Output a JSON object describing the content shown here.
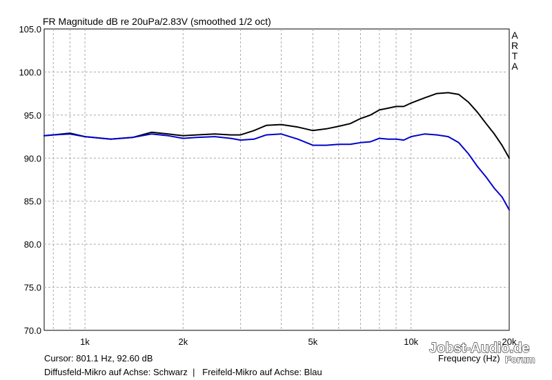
{
  "chart_data": {
    "type": "line",
    "title": "FR Magnitude dB re 20uPa/2.83V (smoothed 1/2 oct)",
    "xlabel": "Frequency (Hz)",
    "ylabel": "",
    "x_scale": "log",
    "xlim": [
      750,
      20000
    ],
    "ylim": [
      70,
      105
    ],
    "grid": true,
    "y_ticks": [
      70,
      75,
      80,
      85,
      90,
      95,
      100,
      105
    ],
    "y_tick_labels": [
      "70.0",
      "75.0",
      "80.0",
      "85.0",
      "90.0",
      "95.0",
      "100.0",
      "105.0"
    ],
    "x_ticks": [
      1000,
      2000,
      5000,
      10000,
      20000
    ],
    "x_tick_labels": [
      "1k",
      "2k",
      "5k",
      "10k",
      "20k"
    ],
    "x_minor_gridlines": [
      800,
      900,
      3000,
      4000,
      6000,
      7000,
      8000,
      9000
    ],
    "series": [
      {
        "color": "#000000",
        "x": [
          750,
          800,
          900,
          1000,
          1200,
          1400,
          1600,
          1800,
          2000,
          2200,
          2500,
          2800,
          3000,
          3300,
          3600,
          4000,
          4500,
          5000,
          5500,
          6000,
          6500,
          7000,
          7500,
          8000,
          8500,
          9000,
          9500,
          10000,
          11000,
          12000,
          13000,
          14000,
          15000,
          16000,
          17000,
          18000,
          19000,
          20000
        ],
        "y": [
          92.6,
          92.7,
          92.9,
          92.5,
          92.2,
          92.4,
          93.0,
          92.8,
          92.6,
          92.7,
          92.8,
          92.7,
          92.7,
          93.2,
          93.8,
          93.9,
          93.6,
          93.2,
          93.4,
          93.7,
          94.0,
          94.6,
          95.0,
          95.6,
          95.8,
          96.0,
          96.0,
          96.4,
          97.0,
          97.5,
          97.6,
          97.4,
          96.5,
          95.3,
          94.0,
          92.8,
          91.5,
          90.0
        ]
      },
      {
        "color": "#0000cc",
        "x": [
          750,
          800,
          900,
          1000,
          1200,
          1400,
          1600,
          1800,
          2000,
          2200,
          2500,
          2800,
          3000,
          3300,
          3600,
          4000,
          4500,
          5000,
          5500,
          6000,
          6500,
          7000,
          7500,
          8000,
          8500,
          9000,
          9500,
          10000,
          11000,
          12000,
          13000,
          14000,
          15000,
          16000,
          17000,
          18000,
          19000,
          20000
        ],
        "y": [
          92.6,
          92.7,
          92.8,
          92.5,
          92.2,
          92.4,
          92.8,
          92.6,
          92.3,
          92.4,
          92.5,
          92.3,
          92.1,
          92.2,
          92.7,
          92.8,
          92.2,
          91.5,
          91.5,
          91.6,
          91.6,
          91.8,
          91.9,
          92.3,
          92.2,
          92.2,
          92.1,
          92.5,
          92.8,
          92.7,
          92.5,
          91.8,
          90.5,
          89.0,
          87.8,
          86.5,
          85.5,
          84.0
        ]
      }
    ],
    "right_brand": [
      "A",
      "R",
      "T",
      "A"
    ],
    "cursor_text": "Cursor: 801.1 Hz, 92.60 dB",
    "legend_text": "Diffusfeld-Mikro auf Achse: Schwarz  |   Freifeld-Mikro auf Achse: Blau",
    "watermark_main": "Jobst-Audio.de",
    "watermark_sub": "Forum"
  }
}
